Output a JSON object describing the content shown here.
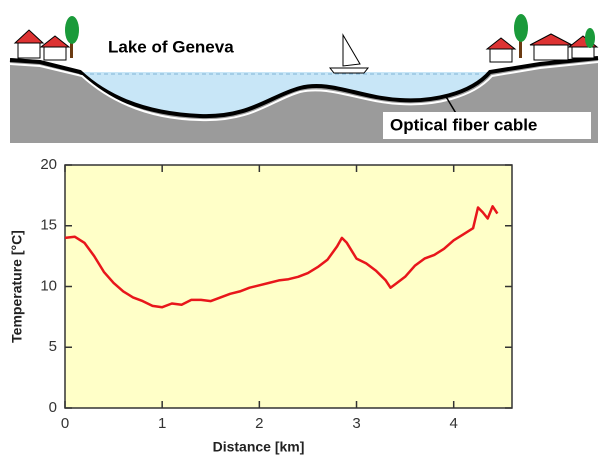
{
  "illustration": {
    "lake_label": "Lake of Geneva",
    "cable_label": "Optical fiber cable"
  },
  "chart_data": {
    "type": "line",
    "xlabel": "Distance [km]",
    "ylabel": "Temperature [°C]",
    "x": [
      0,
      0.1,
      0.2,
      0.3,
      0.4,
      0.5,
      0.6,
      0.7,
      0.8,
      0.9,
      1.0,
      1.1,
      1.2,
      1.3,
      1.4,
      1.5,
      1.6,
      1.7,
      1.8,
      1.9,
      2.0,
      2.1,
      2.2,
      2.3,
      2.4,
      2.5,
      2.6,
      2.7,
      2.8,
      2.85,
      2.9,
      3.0,
      3.1,
      3.2,
      3.3,
      3.35,
      3.4,
      3.5,
      3.6,
      3.7,
      3.8,
      3.9,
      4.0,
      4.1,
      4.2,
      4.25,
      4.3,
      4.35,
      4.4,
      4.45
    ],
    "values": [
      14,
      14.1,
      13.6,
      12.5,
      11.2,
      10.3,
      9.6,
      9.1,
      8.8,
      8.4,
      8.3,
      8.6,
      8.5,
      8.9,
      8.9,
      8.8,
      9.1,
      9.4,
      9.6,
      9.9,
      10.1,
      10.3,
      10.5,
      10.6,
      10.8,
      11.1,
      11.6,
      12.2,
      13.3,
      14.0,
      13.6,
      12.3,
      11.9,
      11.3,
      10.5,
      9.9,
      10.2,
      10.8,
      11.7,
      12.3,
      12.6,
      13.1,
      13.8,
      14.3,
      14.8,
      16.5,
      16.1,
      15.6,
      16.6,
      16.0
    ],
    "color": "#e8161b",
    "background": "#ffffc8",
    "xlim": [
      0,
      4.6
    ],
    "ylim": [
      0,
      20
    ],
    "xticks": [
      0,
      1,
      2,
      3,
      4
    ],
    "yticks": [
      0,
      5,
      10,
      15,
      20
    ]
  }
}
